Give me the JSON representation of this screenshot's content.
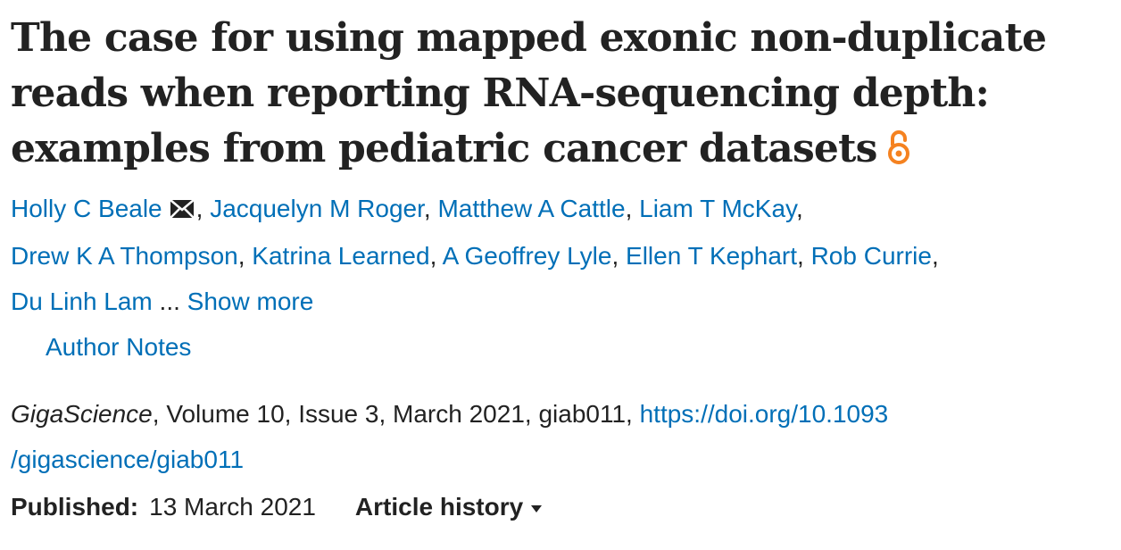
{
  "article": {
    "title": "The case for using mapped exonic non-duplicate reads when reporting RNA-sequencing depth: examples from pediatric cancer datasets",
    "open_access_icon": "open-access-lock-icon",
    "accent_color": "#006fb7",
    "oa_color": "#f58220"
  },
  "authors": {
    "list": [
      "Holly C Beale",
      "Jacquelyn M Roger",
      "Matthew A Cattle",
      "Liam T McKay",
      "Drew K A Thompson",
      "Katrina Learned",
      "A Geoffrey Lyle",
      "Ellen T Kephart",
      "Rob Currie",
      "Du Linh Lam"
    ],
    "corresponding_icon": "envelope-icon",
    "ellipsis": "...",
    "show_more": "Show more",
    "author_notes": "Author Notes"
  },
  "citation": {
    "journal": "GigaScience",
    "details": ", Volume 10, Issue 3, March 2021, giab011, ",
    "doi_part1": "https://doi.org/10.1093",
    "doi_part2": "/gigascience/giab011"
  },
  "publication": {
    "published_label": "Published:",
    "published_date": "13 March 2021",
    "history_label": "Article history",
    "history_icon": "caret-down-icon"
  }
}
